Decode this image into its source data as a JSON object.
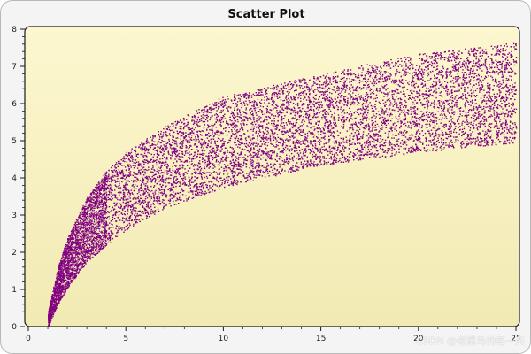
{
  "chart_data": {
    "type": "scatter",
    "title": "Scatter Plot",
    "xlabel": "",
    "ylabel": "",
    "xlim": [
      0,
      25
    ],
    "ylim": [
      0,
      8
    ],
    "x_ticks": [
      0,
      5,
      10,
      15,
      20,
      25
    ],
    "y_ticks": [
      0,
      1,
      2,
      3,
      4,
      5,
      6,
      7,
      8
    ],
    "grid": false,
    "legend": "none",
    "series": [
      {
        "marker_color": "#800080",
        "description_band": {
          "x_range": [
            1,
            25
          ],
          "lower_curve": [
            [
              1,
              0.0
            ],
            [
              1.5,
              0.6
            ],
            [
              2,
              1.05
            ],
            [
              3,
              1.75
            ],
            [
              4,
              2.2
            ],
            [
              5,
              2.6
            ],
            [
              7,
              3.2
            ],
            [
              10,
              3.75
            ],
            [
              15,
              4.35
            ],
            [
              20,
              4.7
            ],
            [
              25,
              4.95
            ]
          ],
          "upper_curve": [
            [
              1,
              0.4
            ],
            [
              1.5,
              1.6
            ],
            [
              2,
              2.4
            ],
            [
              3,
              3.5
            ],
            [
              4,
              4.2
            ],
            [
              5,
              4.7
            ],
            [
              7,
              5.4
            ],
            [
              10,
              6.2
            ],
            [
              15,
              6.8
            ],
            [
              20,
              7.35
            ],
            [
              25,
              7.65
            ]
          ]
        }
      }
    ]
  },
  "watermark": "CSDN @老菜鸟的每一天",
  "colors": {
    "plot_bg_top": "#fcf7cf",
    "plot_bg_bottom": "#f2eab3",
    "frame": "#1a1a1a",
    "points": "#800080"
  }
}
